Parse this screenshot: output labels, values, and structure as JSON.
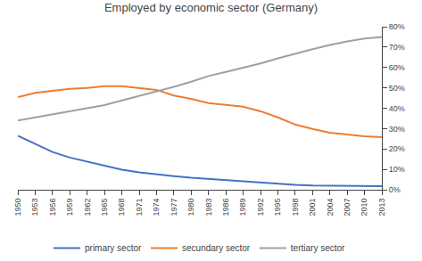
{
  "chart_data": {
    "type": "line",
    "title": "Employed by economic sector (Germany)",
    "x": [
      1950,
      1953,
      1956,
      1959,
      1962,
      1965,
      1968,
      1971,
      1974,
      1977,
      1980,
      1983,
      1986,
      1989,
      1992,
      1995,
      1998,
      2001,
      2004,
      2007,
      2010,
      2013
    ],
    "series": [
      {
        "name": "primary sector",
        "color": "#4472c4",
        "values": [
          0.265,
          0.225,
          0.185,
          0.158,
          0.138,
          0.115,
          0.098,
          0.085,
          0.075,
          0.067,
          0.059,
          0.053,
          0.048,
          0.043,
          0.035,
          0.028,
          0.024,
          0.021,
          0.02,
          0.019,
          0.018,
          0.018
        ]
      },
      {
        "name": "secundary sector",
        "color": "#ed7d31",
        "values": [
          0.455,
          0.475,
          0.485,
          0.495,
          0.5,
          0.508,
          0.508,
          0.5,
          0.49,
          0.462,
          0.446,
          0.425,
          0.418,
          0.408,
          0.385,
          0.355,
          0.32,
          0.298,
          0.28,
          0.27,
          0.262,
          0.258
        ]
      },
      {
        "name": "tertiary sector",
        "color": "#a0a0a0",
        "values": [
          0.34,
          0.355,
          0.37,
          0.385,
          0.398,
          0.415,
          0.438,
          0.46,
          0.48,
          0.505,
          0.53,
          0.558,
          0.578,
          0.598,
          0.62,
          0.645,
          0.668,
          0.69,
          0.71,
          0.728,
          0.742,
          0.75
        ]
      }
    ],
    "xlim": [
      1950,
      2013
    ],
    "xticks": [
      1950,
      1953,
      1956,
      1959,
      1962,
      1965,
      1968,
      1971,
      1974,
      1977,
      1980,
      1983,
      1986,
      1989,
      1992,
      1995,
      1998,
      2001,
      2004,
      2007,
      2010,
      2013
    ],
    "ylim": [
      0.0,
      0.8
    ],
    "yticks": [
      {
        "value": 0.0,
        "label": "0%"
      },
      {
        "value": 0.1,
        "label": "10%"
      },
      {
        "value": 0.2,
        "label": "20%"
      },
      {
        "value": 0.3,
        "label": "30%"
      },
      {
        "value": 0.4,
        "label": "40%"
      },
      {
        "value": 0.5,
        "label": "50%"
      },
      {
        "value": 0.6,
        "label": "60%"
      },
      {
        "value": 0.7,
        "label": "70%"
      },
      {
        "value": 0.8,
        "label": "80%"
      }
    ],
    "grid": false,
    "legend": "bottom"
  }
}
